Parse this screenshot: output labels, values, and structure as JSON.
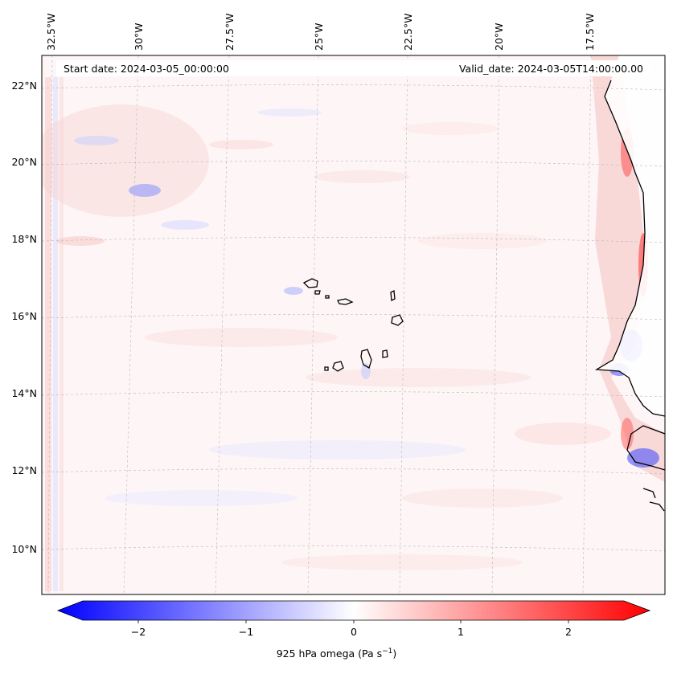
{
  "header": {
    "start_date": "Start date: 2024-03-05_00:00:00",
    "valid_date": "Valid_date: 2024-03-05T14:00:00.00"
  },
  "longitude_labels": [
    "32.5°W",
    "30°W",
    "27.5°W",
    "25°W",
    "22.5°W",
    "20°W",
    "17.5°W"
  ],
  "latitude_labels": [
    "22°N",
    "20°N",
    "18°N",
    "16°N",
    "14°N",
    "12°N",
    "10°N"
  ],
  "colorbar": {
    "label_main": "925 hPa omega (Pa s",
    "label_exp": "−1",
    "label_close": ")",
    "tick_labels": [
      "−2",
      "−1",
      "0",
      "1",
      "2"
    ],
    "range": [
      -2.6,
      2.6
    ],
    "colors": {
      "min": "#0000ff",
      "mid": "#ffffff",
      "max": "#ff0000"
    }
  },
  "map": {
    "projection": "Lambert conformal",
    "extent": {
      "lon": [
        -33,
        -16
      ],
      "lat": [
        9,
        22.5
      ]
    },
    "gridlines": true,
    "coastline_color": "#000000"
  }
}
